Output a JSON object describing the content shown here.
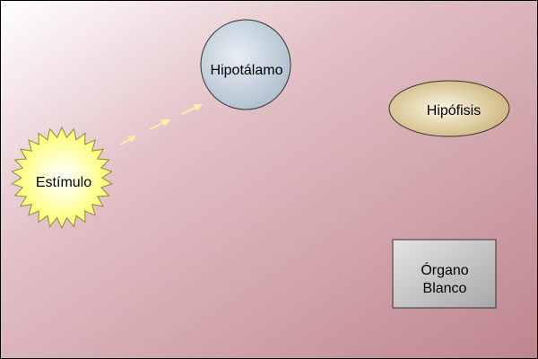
{
  "nodes": {
    "estimulo": {
      "label": "Estímulo",
      "color": "#ffff66"
    },
    "hipotalamo": {
      "label": "Hipotálamo",
      "color": "#b8cad8"
    },
    "hipofisis": {
      "label": "Hipófisis",
      "color": "#dcc99a"
    },
    "organo_blanco": {
      "line1": "Órgano",
      "line2": "Blanco",
      "color": "#c4c4c4"
    }
  },
  "background": {
    "start": "#ffffff",
    "end": "#c08890"
  },
  "arrow_color": "#f4f0a0"
}
